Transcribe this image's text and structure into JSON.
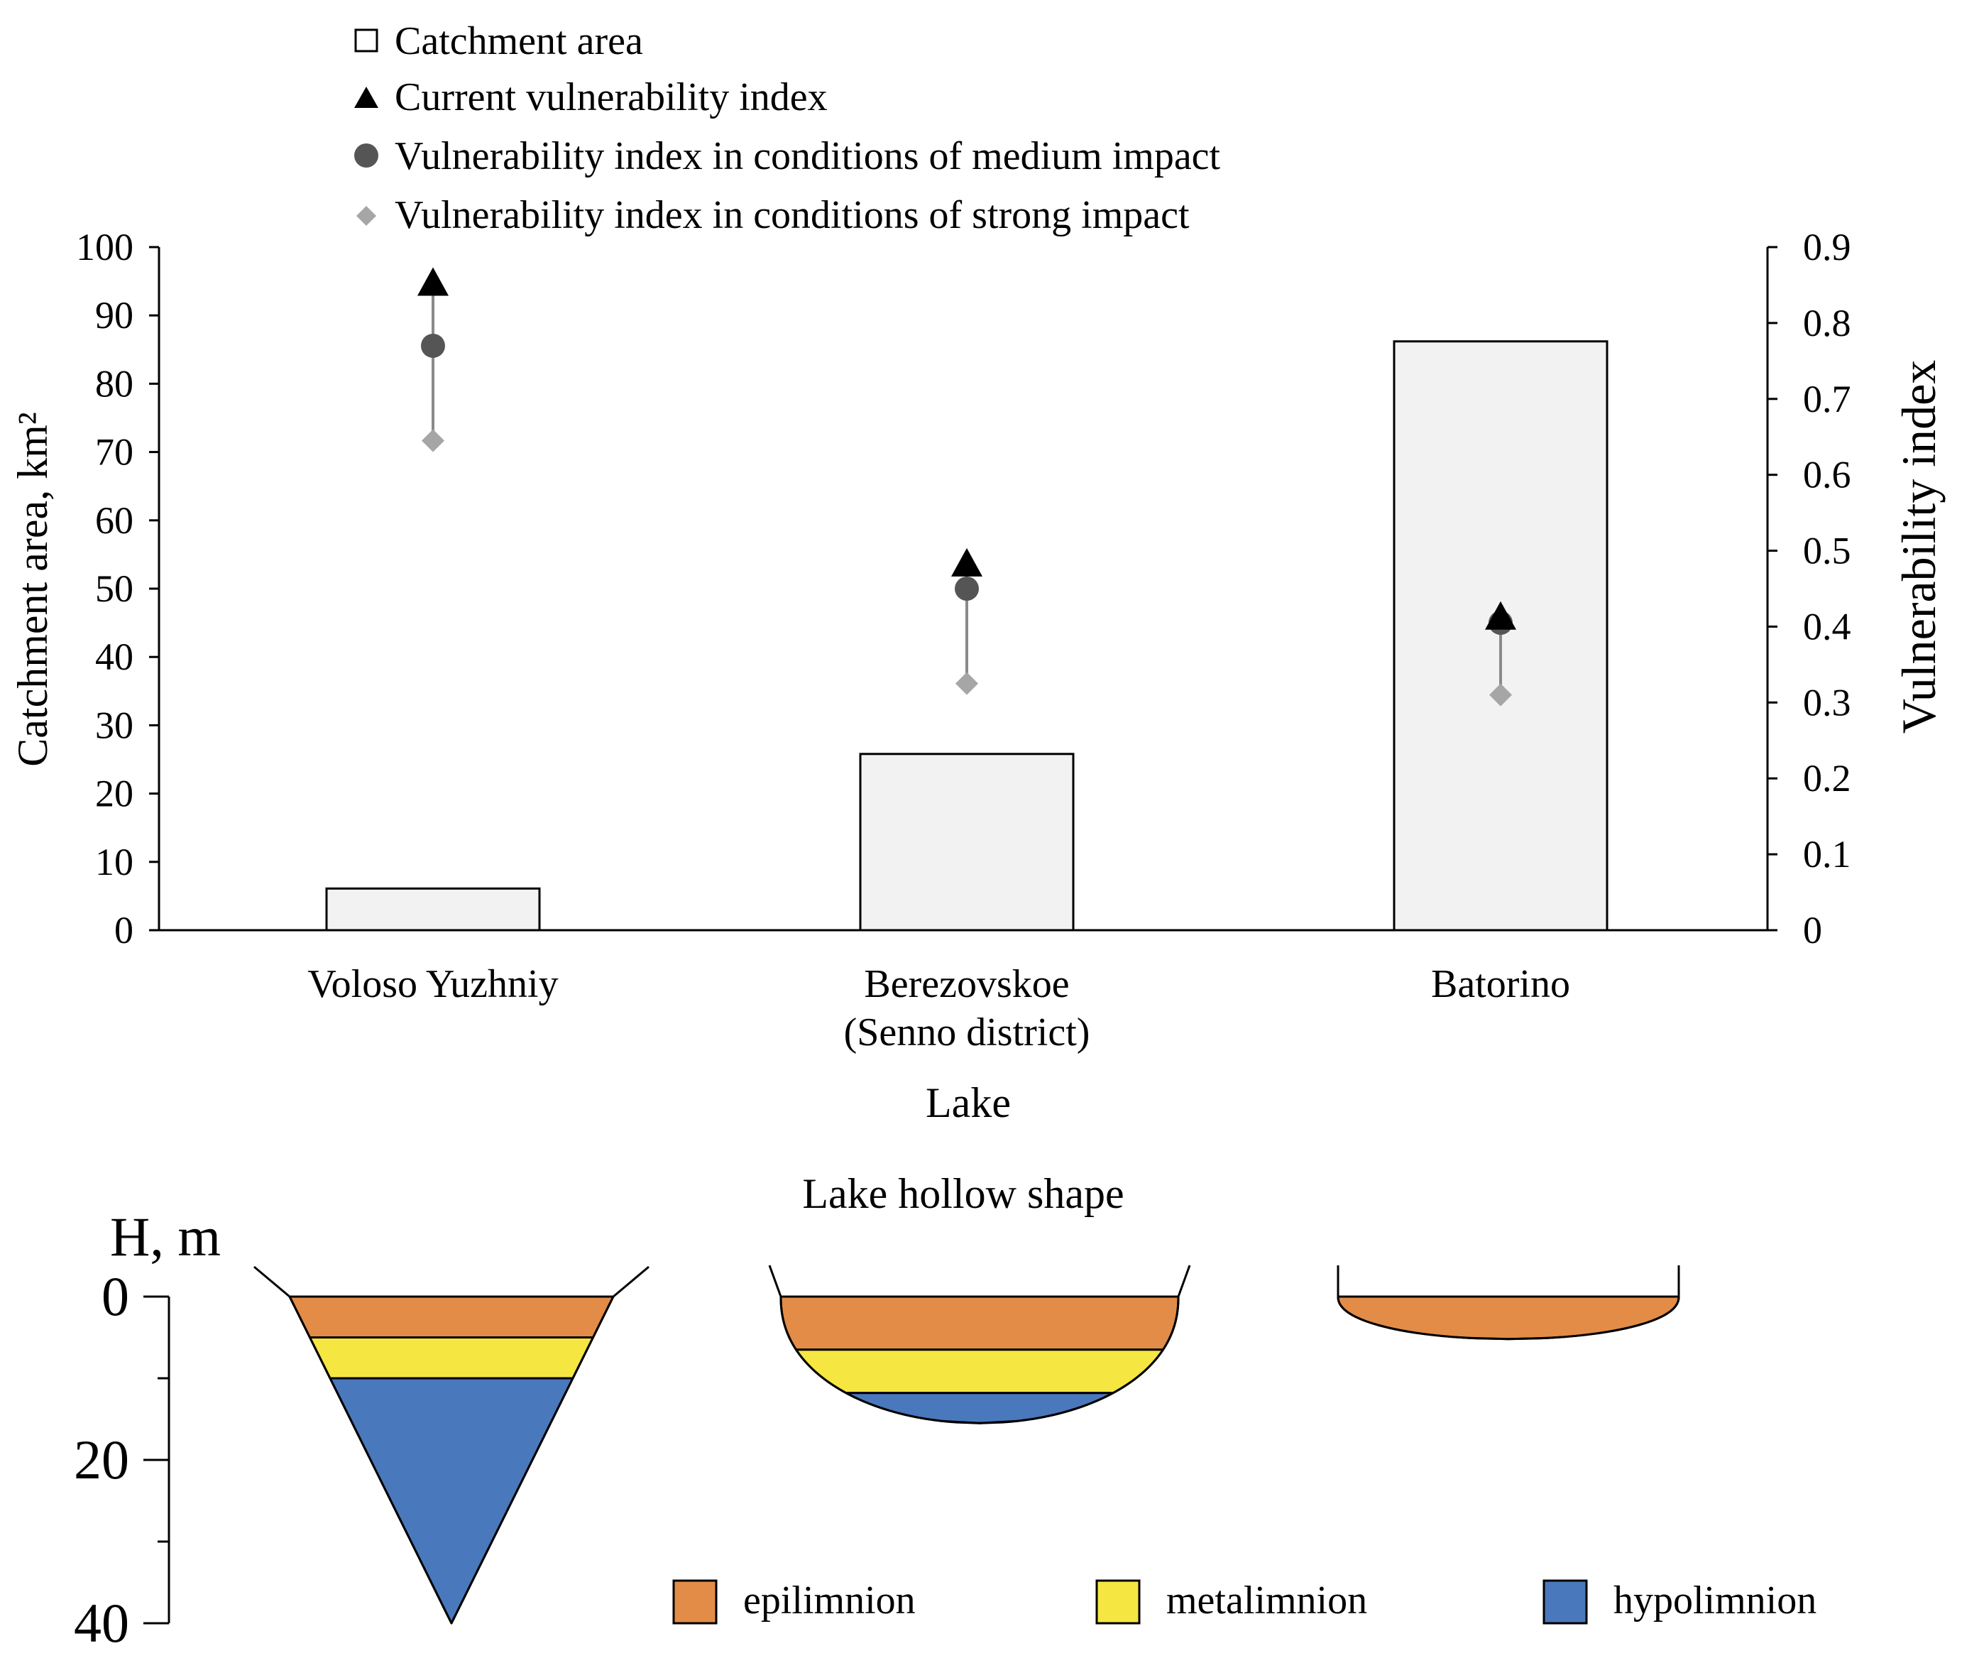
{
  "chart_data": [
    {
      "type": "bar",
      "xlabel": "Lake",
      "ylabel": "Catchment area, km²",
      "ylabel_right": "Vulnerability index",
      "categories": [
        {
          "line1": "Voloso Yuzhniy",
          "line2": ""
        },
        {
          "line1": "Berezovskoe",
          "line2": "(Senno district)"
        },
        {
          "line1": "Batorino",
          "line2": ""
        }
      ],
      "ylim": [
        0,
        100
      ],
      "y_ticks": [
        "0",
        "10",
        "20",
        "30",
        "40",
        "50",
        "60",
        "70",
        "80",
        "90",
        "100"
      ],
      "y2lim": [
        0,
        0.9
      ],
      "y2_ticks": [
        "0",
        "0.1",
        "0.2",
        "0.3",
        "0.4",
        "0.5",
        "0.6",
        "0.7",
        "0.8",
        "0.9"
      ],
      "legend_position": "top",
      "series": [
        {
          "name": "Catchment area",
          "axis": "left",
          "kind": "bar",
          "color": "#f2f2f2",
          "values": [
            6.1,
            25.8,
            86.2
          ]
        },
        {
          "name": "Current vulnerability index",
          "axis": "right",
          "kind": "triangle",
          "color": "#000000",
          "values": [
            0.85,
            0.48,
            0.41
          ]
        },
        {
          "name": "Vulnerability index in conditions of medium impact",
          "axis": "right",
          "kind": "circle",
          "color": "#555555",
          "values": [
            0.77,
            0.45,
            0.405
          ]
        },
        {
          "name": "Vulnerability index in conditions of strong impact",
          "axis": "right",
          "kind": "diamond",
          "color": "#a6a6a6",
          "values": [
            0.645,
            0.325,
            0.31
          ]
        }
      ]
    },
    {
      "type": "diagram",
      "title": "Lake hollow shape",
      "ylabel": "H, m",
      "depth_ticks": [
        "0",
        "20",
        "40"
      ],
      "depth_range": [
        0,
        40
      ],
      "colors": {
        "epilimnion": "#e28c47",
        "metalimnion": "#f5e642",
        "hypolimnion": "#4a78bc"
      },
      "legend": [
        {
          "key": "epilimnion",
          "label": "epilimnion"
        },
        {
          "key": "metalimnion",
          "label": "metalimnion"
        },
        {
          "key": "hypolimnion",
          "label": "hypolimnion"
        }
      ],
      "lakes": [
        {
          "shape": "v",
          "max_depth": 40,
          "layers": [
            {
              "key": "epilimnion",
              "to": 5
            },
            {
              "key": "metalimnion",
              "to": 10
            },
            {
              "key": "hypolimnion",
              "to": 40
            }
          ]
        },
        {
          "shape": "u",
          "max_depth": 15.5,
          "layers": [
            {
              "key": "epilimnion",
              "to": 6.5
            },
            {
              "key": "metalimnion",
              "to": 11.8
            },
            {
              "key": "hypolimnion",
              "to": 15.5
            }
          ]
        },
        {
          "shape": "u",
          "max_depth": 5.2,
          "layers": [
            {
              "key": "epilimnion",
              "to": 5.2
            }
          ]
        }
      ]
    }
  ]
}
